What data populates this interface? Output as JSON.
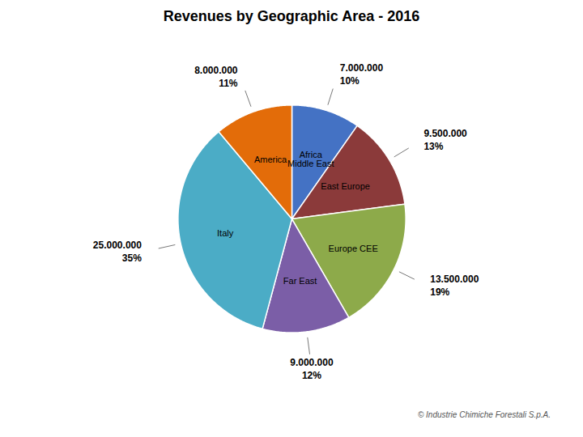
{
  "chart_data": {
    "type": "pie",
    "title": "Revenues by Geographic Area - 2016",
    "caption": "© Industrie Chimiche Forestali S.p.A.",
    "categories": [
      "Africa\nMiddle East",
      "East Europe",
      "Europe CEE",
      "Far East",
      "Italy",
      "America"
    ],
    "values": [
      7000000,
      9500000,
      13500000,
      9000000,
      25000000,
      8000000
    ],
    "value_labels": [
      "7.000.000",
      "9.500.000",
      "13.500.000",
      "9.000.000",
      "25.000.000",
      "8.000.000"
    ],
    "shares": [
      10,
      13,
      19,
      12,
      35,
      11
    ],
    "share_labels": [
      "10%",
      "13%",
      "19%",
      "12%",
      "35%",
      "11%"
    ],
    "colors": [
      "#4472C4",
      "#8B3A3A",
      "#8DAA4A",
      "#7B5EA7",
      "#4BACC6",
      "#E36C09"
    ]
  }
}
